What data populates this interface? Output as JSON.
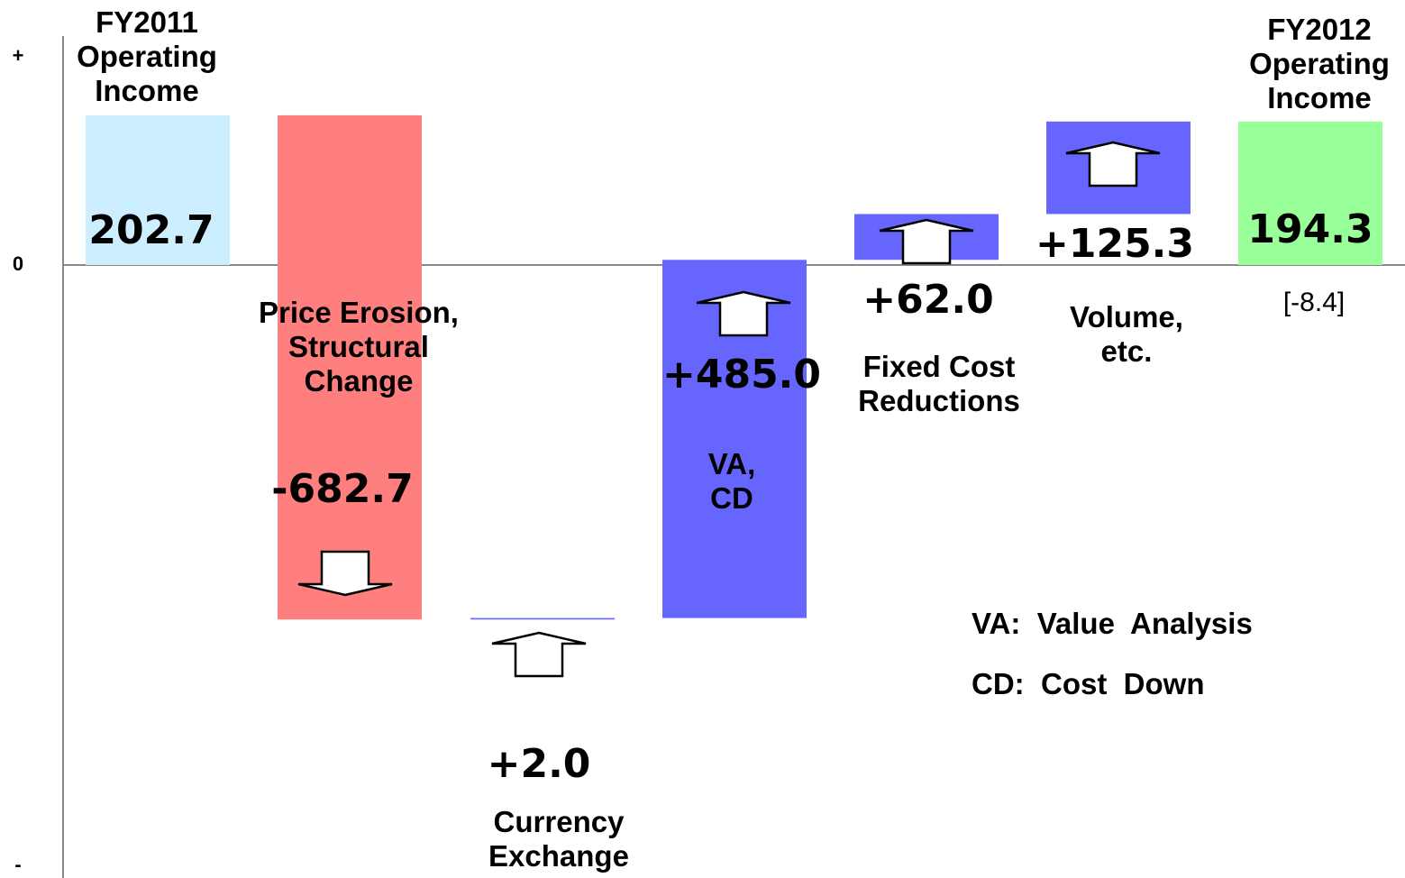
{
  "chart_data": {
    "type": "waterfall",
    "categories": [
      "FY2011\nOperating\nIncome",
      "Price Erosion,\nStructural\nChange",
      "Currency\nExchange",
      "VA,\nCD",
      "Fixed Cost\nReductions",
      "Volume,\netc.",
      "FY2012\nOperating\nIncome"
    ],
    "values": [
      202.7,
      -682.7,
      2.0,
      485.0,
      62.0,
      125.3,
      194.3
    ],
    "value_labels": [
      "202.7",
      "-682.7",
      "+2.0",
      "+485.0",
      "+62.0",
      "+125.3",
      "194.3"
    ],
    "totals": [
      true,
      false,
      false,
      false,
      false,
      false,
      true
    ],
    "colors": [
      "#cceeff",
      "#ff7f7f",
      "#6666ff",
      "#6666ff",
      "#6666ff",
      "#6666ff",
      "#99ff99"
    ],
    "ylim": [
      -830,
      310
    ],
    "yticks": [
      {
        "value": 282,
        "label": "+"
      },
      0,
      {
        "value": -814,
        "label": "-"
      }
    ],
    "annotation": "[-8.4]",
    "notes": [
      "VA:  Value  Analysis",
      "CD:  Cost  Down"
    ]
  }
}
